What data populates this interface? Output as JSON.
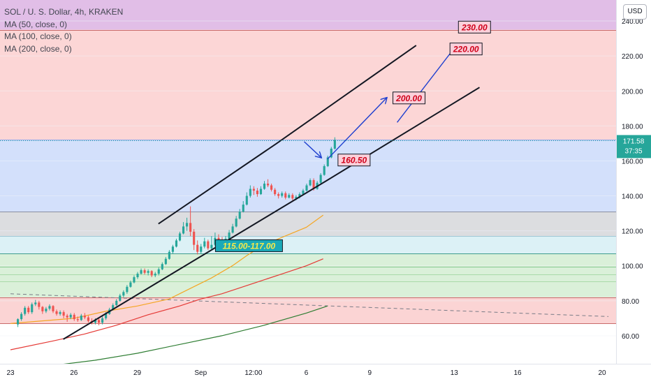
{
  "legend": {
    "symbol": "SOL / U. S. Dollar, 4h, KRAKEN",
    "ma": [
      "MA (50, close, 0)",
      "MA (100, close, 0)",
      "MA (200, close, 0)"
    ]
  },
  "currency_button": "USD",
  "price_tag": {
    "price": "171.58",
    "countdown": "37:35"
  },
  "chart_data": {
    "type": "candlestick",
    "ylim": [
      44,
      252
    ],
    "yticks": [
      "60.00",
      "80.00",
      "100.00",
      "120.00",
      "140.00",
      "160.00",
      "180.00",
      "200.00",
      "220.00",
      "240.00"
    ],
    "xticks": [
      {
        "label": "23",
        "day": 0
      },
      {
        "label": "26",
        "day": 3
      },
      {
        "label": "29",
        "day": 6
      },
      {
        "label": "Sep",
        "day": 9
      },
      {
        "label": "12:00",
        "day": 11.5
      },
      {
        "label": "6",
        "day": 14
      },
      {
        "label": "9",
        "day": 17
      },
      {
        "label": "13",
        "day": 21
      },
      {
        "label": "16",
        "day": 24
      },
      {
        "label": "20",
        "day": 28
      }
    ],
    "zones": [
      {
        "from": 235,
        "to": 252,
        "color": "#e1bee7"
      },
      {
        "from": 172,
        "to": 235,
        "color": "#fcd6d6"
      },
      {
        "from": 131,
        "to": 172,
        "color": "#d3e0fb"
      },
      {
        "from": 117,
        "to": 131,
        "color": "#dcdde0"
      },
      {
        "from": 107,
        "to": 117,
        "color": "#dcf1f6"
      },
      {
        "from": 82,
        "to": 107,
        "color": "#daf0d9"
      },
      {
        "from": 67,
        "to": 82,
        "color": "#fbd4d4"
      }
    ],
    "hlines": [
      {
        "y": 235,
        "color": "#c96a6a"
      },
      {
        "y": 172,
        "color": "#8fa9ee"
      },
      {
        "y": 131,
        "color": "#8a8fa0"
      },
      {
        "y": 117,
        "color": "#9fc7d6"
      },
      {
        "y": 107,
        "color": "#3f9c8e"
      },
      {
        "y": 99.5,
        "color": "#86c98d"
      },
      {
        "y": 95,
        "color": "#a8d9a8"
      },
      {
        "y": 91,
        "color": "#a8d9a8"
      },
      {
        "y": 82,
        "color": "#c96a6a"
      },
      {
        "y": 67,
        "color": "#c96a6a"
      }
    ],
    "channel": {
      "upper": [
        [
          7,
          124
        ],
        [
          12.6,
          170
        ],
        [
          19.2,
          226
        ]
      ],
      "lower": [
        [
          2.5,
          58
        ],
        [
          15,
          149
        ],
        [
          22.2,
          202
        ]
      ]
    },
    "dashed_line": [
      [
        0,
        84
      ],
      [
        28.3,
        71
      ]
    ],
    "ma_series": [
      {
        "name": "MA (50, close, 0)",
        "color": "#f5a623",
        "points": [
          [
            0,
            67
          ],
          [
            3,
            70
          ],
          [
            4.5,
            74
          ],
          [
            6,
            77
          ],
          [
            7.5,
            81
          ],
          [
            8.5,
            87
          ],
          [
            9.5,
            93
          ],
          [
            10.5,
            100
          ],
          [
            11.2,
            106
          ],
          [
            12,
            112
          ],
          [
            13,
            117
          ],
          [
            14,
            122
          ],
          [
            14.8,
            129
          ]
        ]
      },
      {
        "name": "MA (100, close, 0)",
        "color": "#e53935",
        "points": [
          [
            0,
            52
          ],
          [
            2,
            57
          ],
          [
            3.5,
            61
          ],
          [
            5,
            66
          ],
          [
            6.5,
            72
          ],
          [
            8,
            77
          ],
          [
            9,
            81
          ],
          [
            10,
            84
          ],
          [
            11,
            88
          ],
          [
            12,
            92
          ],
          [
            13,
            96
          ],
          [
            14,
            100
          ],
          [
            14.8,
            104
          ]
        ]
      },
      {
        "name": "MA (200, close, 0)",
        "color": "#2e7d32",
        "points": [
          [
            0,
            41
          ],
          [
            2,
            43
          ],
          [
            4,
            46
          ],
          [
            6,
            50
          ],
          [
            8,
            55
          ],
          [
            10,
            60
          ],
          [
            12,
            66
          ],
          [
            14,
            73
          ],
          [
            15,
            77
          ]
        ]
      }
    ],
    "candles": [
      [
        66.5,
        69.5,
        65,
        70
      ],
      [
        69.5,
        72.5,
        68.5,
        73.5
      ],
      [
        72.5,
        76,
        71.5,
        77
      ],
      [
        76,
        73.5,
        72.5,
        77
      ],
      [
        73.5,
        78,
        72.5,
        79
      ],
      [
        78,
        79,
        77,
        80.5
      ],
      [
        79,
        76.5,
        75,
        80
      ],
      [
        76.5,
        74,
        72.5,
        77
      ],
      [
        74,
        75.5,
        73,
        76.5
      ],
      [
        75.5,
        77,
        74.5,
        78
      ],
      [
        77,
        74,
        73,
        77.5
      ],
      [
        74,
        72.5,
        71.5,
        75
      ],
      [
        72.5,
        73.5,
        71.5,
        74.5
      ],
      [
        73.5,
        71.5,
        70,
        74.5
      ],
      [
        71.5,
        70.5,
        68,
        72.5
      ],
      [
        70.5,
        72,
        69.5,
        73
      ],
      [
        72,
        69.5,
        68.5,
        73
      ],
      [
        69.5,
        69,
        68,
        71
      ],
      [
        69,
        71.5,
        68.5,
        72.5
      ],
      [
        71.5,
        70.5,
        69.5,
        73
      ],
      [
        70.5,
        68.5,
        67.5,
        71.5
      ],
      [
        68.5,
        67.5,
        66.5,
        70
      ],
      [
        67.5,
        69,
        66.5,
        70
      ],
      [
        69,
        67.5,
        66,
        70
      ],
      [
        67.5,
        70,
        66.5,
        71
      ],
      [
        70,
        72.5,
        69,
        73.5
      ],
      [
        72.5,
        75,
        72,
        76
      ],
      [
        75,
        77.5,
        74.5,
        78.5
      ],
      [
        77.5,
        80,
        77,
        81
      ],
      [
        80,
        83,
        79.5,
        84
      ],
      [
        83,
        85,
        82,
        86
      ],
      [
        85,
        88,
        84,
        89
      ],
      [
        88,
        90.5,
        87.5,
        91.5
      ],
      [
        90.5,
        93.5,
        90,
        94.5
      ],
      [
        93.5,
        95.5,
        92.5,
        96.5
      ],
      [
        95.5,
        97.5,
        95,
        98.5
      ],
      [
        97.5,
        96,
        95,
        98.5
      ],
      [
        96,
        97,
        94.5,
        98
      ],
      [
        97,
        94.5,
        93.5,
        97.5
      ],
      [
        94.5,
        95.5,
        93.5,
        96.5
      ],
      [
        95.5,
        98,
        94.5,
        99
      ],
      [
        98,
        101,
        97.5,
        102
      ],
      [
        101,
        104,
        100.5,
        105
      ],
      [
        104,
        108,
        103.5,
        109
      ],
      [
        108,
        111,
        107,
        112
      ],
      [
        111,
        114.5,
        110.5,
        115.5
      ],
      [
        114.5,
        118.5,
        114,
        119.5
      ],
      [
        118.5,
        122.5,
        118,
        125
      ],
      [
        122.5,
        124.5,
        120,
        127.5
      ],
      [
        124.5,
        119.5,
        117,
        134
      ],
      [
        119.5,
        112,
        109,
        121
      ],
      [
        112,
        108,
        106.5,
        114.5
      ],
      [
        108,
        111,
        107,
        112.5
      ],
      [
        111,
        114,
        110,
        116
      ],
      [
        114,
        110,
        109,
        115
      ],
      [
        110,
        112,
        109,
        117
      ],
      [
        112,
        116,
        111,
        119
      ],
      [
        116,
        114.5,
        112.5,
        118
      ],
      [
        114.5,
        112.5,
        111,
        116.5
      ],
      [
        112.5,
        115.5,
        112,
        117
      ],
      [
        115.5,
        119,
        115,
        120.5
      ],
      [
        119,
        122.5,
        118.5,
        124
      ],
      [
        122.5,
        127,
        122,
        128.5
      ],
      [
        127,
        131,
        126.5,
        132.5
      ],
      [
        131,
        135,
        130.5,
        137
      ],
      [
        135,
        140,
        134.5,
        142
      ],
      [
        140,
        144,
        139,
        146
      ],
      [
        144,
        143,
        140.5,
        145.5
      ],
      [
        143,
        141,
        139.5,
        144.5
      ],
      [
        141,
        144,
        140.5,
        145.5
      ],
      [
        144,
        147,
        143.5,
        148.5
      ],
      [
        147,
        146,
        145,
        149.5
      ],
      [
        146,
        143.5,
        142.5,
        147
      ],
      [
        143.5,
        141,
        140,
        144.5
      ],
      [
        141,
        140,
        138.5,
        142
      ],
      [
        140,
        141.5,
        139,
        142.5
      ],
      [
        141.5,
        139,
        138,
        142.5
      ],
      [
        139,
        140.5,
        138.5,
        141.5
      ],
      [
        140.5,
        138.5,
        137.5,
        141.5
      ],
      [
        138.5,
        139.5,
        137.5,
        140.5
      ],
      [
        139.5,
        141,
        138.5,
        142
      ],
      [
        141,
        143,
        140.5,
        144
      ],
      [
        143,
        146,
        142.5,
        147
      ],
      [
        146,
        149,
        145.5,
        150
      ],
      [
        149,
        144,
        143,
        150
      ],
      [
        144,
        147.5,
        143.5,
        148.5
      ],
      [
        147.5,
        152,
        147,
        153
      ],
      [
        152,
        157,
        151.5,
        158
      ],
      [
        157,
        162,
        156.5,
        163
      ],
      [
        162,
        167,
        161.5,
        168
      ],
      [
        167,
        172,
        166.5,
        173.5
      ]
    ],
    "candle_start_day": 0.35,
    "candles_per_day": 6,
    "annotations": [
      {
        "label": "230.00",
        "day": 21.2,
        "y": 236.5,
        "kind": "target"
      },
      {
        "label": "220.00",
        "day": 20.8,
        "y": 224,
        "kind": "target"
      },
      {
        "label": "200.00",
        "day": 18.1,
        "y": 196,
        "kind": "target"
      },
      {
        "label": "160.50",
        "day": 15.5,
        "y": 160.5,
        "kind": "target"
      },
      {
        "label": "115.00-117.00",
        "day": 9.7,
        "y": 111.5,
        "kind": "zone"
      }
    ],
    "arrows": [
      [
        [
          13.9,
          171
        ],
        [
          14.7,
          162
        ]
      ],
      [
        [
          15,
          161
        ],
        [
          17.8,
          196
        ]
      ],
      [
        [
          18.3,
          182
        ],
        [
          21.1,
          226
        ]
      ]
    ]
  }
}
